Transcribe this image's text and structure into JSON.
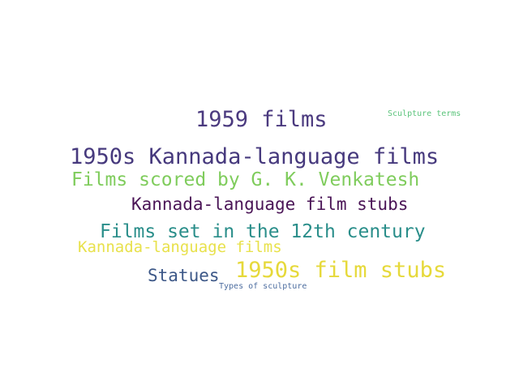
{
  "words": [
    {
      "text": "1959 films",
      "color": "#4b3a7f"
    },
    {
      "text": "1950s Kannada-language films",
      "color": "#46397d"
    },
    {
      "text": "Films scored by G. K. Venkatesh",
      "color": "#7fcc5c"
    },
    {
      "text": "Kannada-language film stubs",
      "color": "#4a1456"
    },
    {
      "text": "Films set in the 12th century",
      "color": "#2a8e8a"
    },
    {
      "text": "Kannada-language films",
      "color": "#e8e14b"
    },
    {
      "text": "1950s film stubs",
      "color": "#e6d93a"
    },
    {
      "text": "Statues",
      "color": "#3c5787"
    },
    {
      "text": "Types of sculpture",
      "color": "#4e6ea0"
    },
    {
      "text": "Sculpture terms",
      "color": "#5cc47c"
    }
  ]
}
